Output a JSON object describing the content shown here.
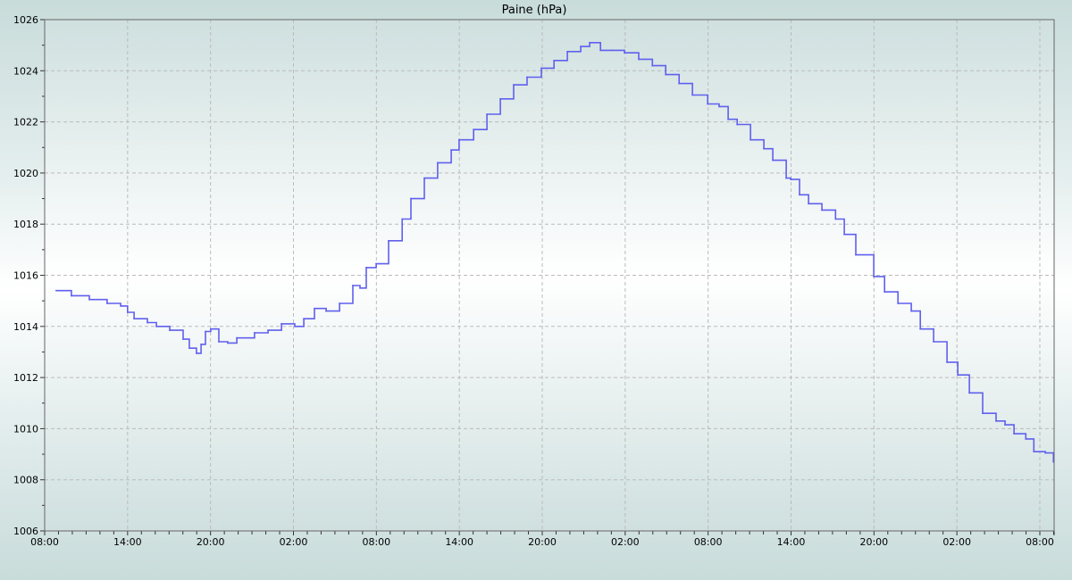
{
  "chart_data": {
    "type": "line",
    "title": "Paine (hPa)",
    "xlabel": "",
    "ylabel": "",
    "ylim": [
      1006,
      1026
    ],
    "yticks": [
      "1006",
      "1008",
      "1010",
      "1012",
      "1014",
      "1016",
      "1018",
      "1020",
      "1022",
      "1024",
      "1026"
    ],
    "xticks": [
      "08:00",
      "14:00",
      "20:00",
      "02:00",
      "08:00",
      "14:00",
      "20:00",
      "02:00",
      "08:00",
      "14:00",
      "20:00",
      "02:00",
      "08:00"
    ],
    "xlim": [
      "day1 08:00",
      "day4 09:03"
    ],
    "grid": true,
    "line_color": "#6060ee",
    "points": [
      [
        1,
        "08:50",
        1015.4
      ],
      [
        1,
        "09:56",
        1015.2
      ],
      [
        1,
        "11:14",
        1015.05
      ],
      [
        1,
        "12:31",
        1014.9
      ],
      [
        1,
        "13:30",
        1014.8
      ],
      [
        1,
        "14:00",
        1014.55
      ],
      [
        1,
        "14:28",
        1014.3
      ],
      [
        1,
        "15:26",
        1014.15
      ],
      [
        1,
        "16:05",
        1014.0
      ],
      [
        1,
        "17:03",
        1013.85
      ],
      [
        1,
        "18:01",
        1013.5
      ],
      [
        1,
        "18:28",
        1013.15
      ],
      [
        1,
        "18:59",
        1012.95
      ],
      [
        1,
        "19:19",
        1013.3
      ],
      [
        1,
        "19:38",
        1013.8
      ],
      [
        1,
        "20:01",
        1013.9
      ],
      [
        1,
        "20:36",
        1013.4
      ],
      [
        1,
        "21:15",
        1013.35
      ],
      [
        1,
        "21:54",
        1013.55
      ],
      [
        1,
        "23:11",
        1013.75
      ],
      [
        2,
        "00:10",
        1013.85
      ],
      [
        2,
        "01:08",
        1014.1
      ],
      [
        2,
        "02:06",
        1014.0
      ],
      [
        2,
        "02:45",
        1014.3
      ],
      [
        2,
        "03:31",
        1014.7
      ],
      [
        2,
        "04:22",
        1014.6
      ],
      [
        2,
        "05:20",
        1014.9
      ],
      [
        2,
        "06:18",
        1015.6
      ],
      [
        2,
        "06:49",
        1015.5
      ],
      [
        2,
        "07:16",
        1016.3
      ],
      [
        2,
        "07:59",
        1016.45
      ],
      [
        2,
        "08:53",
        1017.35
      ],
      [
        2,
        "09:52",
        1018.2
      ],
      [
        2,
        "10:30",
        1019.0
      ],
      [
        2,
        "11:28",
        1019.8
      ],
      [
        2,
        "12:26",
        1020.4
      ],
      [
        2,
        "13:25",
        1020.9
      ],
      [
        2,
        "13:59",
        1021.3
      ],
      [
        2,
        "15:02",
        1021.7
      ],
      [
        2,
        "16:00",
        1022.3
      ],
      [
        2,
        "16:58",
        1022.9
      ],
      [
        2,
        "17:56",
        1023.45
      ],
      [
        2,
        "18:54",
        1023.75
      ],
      [
        2,
        "19:56",
        1024.1
      ],
      [
        2,
        "20:51",
        1024.4
      ],
      [
        2,
        "21:49",
        1024.75
      ],
      [
        2,
        "22:47",
        1024.95
      ],
      [
        2,
        "23:26",
        1025.1
      ],
      [
        3,
        "00:13",
        1024.8
      ],
      [
        3,
        "01:03",
        1024.8
      ],
      [
        3,
        "01:57",
        1024.7
      ],
      [
        3,
        "02:59",
        1024.45
      ],
      [
        3,
        "03:58",
        1024.2
      ],
      [
        3,
        "04:56",
        1023.85
      ],
      [
        3,
        "05:54",
        1023.5
      ],
      [
        3,
        "06:52",
        1023.05
      ],
      [
        3,
        "07:58",
        1022.7
      ],
      [
        3,
        "08:48",
        1022.6
      ],
      [
        3,
        "09:27",
        1022.1
      ],
      [
        3,
        "10:06",
        1021.9
      ],
      [
        3,
        "11:04",
        1021.3
      ],
      [
        3,
        "12:02",
        1020.95
      ],
      [
        3,
        "12:41",
        1020.5
      ],
      [
        3,
        "13:39",
        1019.8
      ],
      [
        3,
        "13:59",
        1019.75
      ],
      [
        3,
        "14:37",
        1019.15
      ],
      [
        3,
        "15:16",
        1018.8
      ],
      [
        3,
        "16:14",
        1018.55
      ],
      [
        3,
        "17:13",
        1018.2
      ],
      [
        3,
        "17:51",
        1017.6
      ],
      [
        3,
        "18:41",
        1016.8
      ],
      [
        3,
        "19:59",
        1015.95
      ],
      [
        3,
        "20:46",
        1015.35
      ],
      [
        3,
        "21:44",
        1014.9
      ],
      [
        3,
        "22:42",
        1014.6
      ],
      [
        3,
        "23:21",
        1013.9
      ],
      [
        4,
        "00:19",
        1013.4
      ],
      [
        4,
        "01:17",
        1012.6
      ],
      [
        4,
        "02:04",
        1012.1
      ],
      [
        4,
        "02:54",
        1011.4
      ],
      [
        4,
        "03:52",
        1010.6
      ],
      [
        4,
        "04:50",
        1010.3
      ],
      [
        4,
        "05:29",
        1010.15
      ],
      [
        4,
        "06:08",
        1009.8
      ],
      [
        4,
        "06:59",
        1009.6
      ],
      [
        4,
        "07:34",
        1009.1
      ],
      [
        4,
        "08:24",
        1009.05
      ],
      [
        4,
        "08:59",
        1008.7
      ]
    ]
  }
}
